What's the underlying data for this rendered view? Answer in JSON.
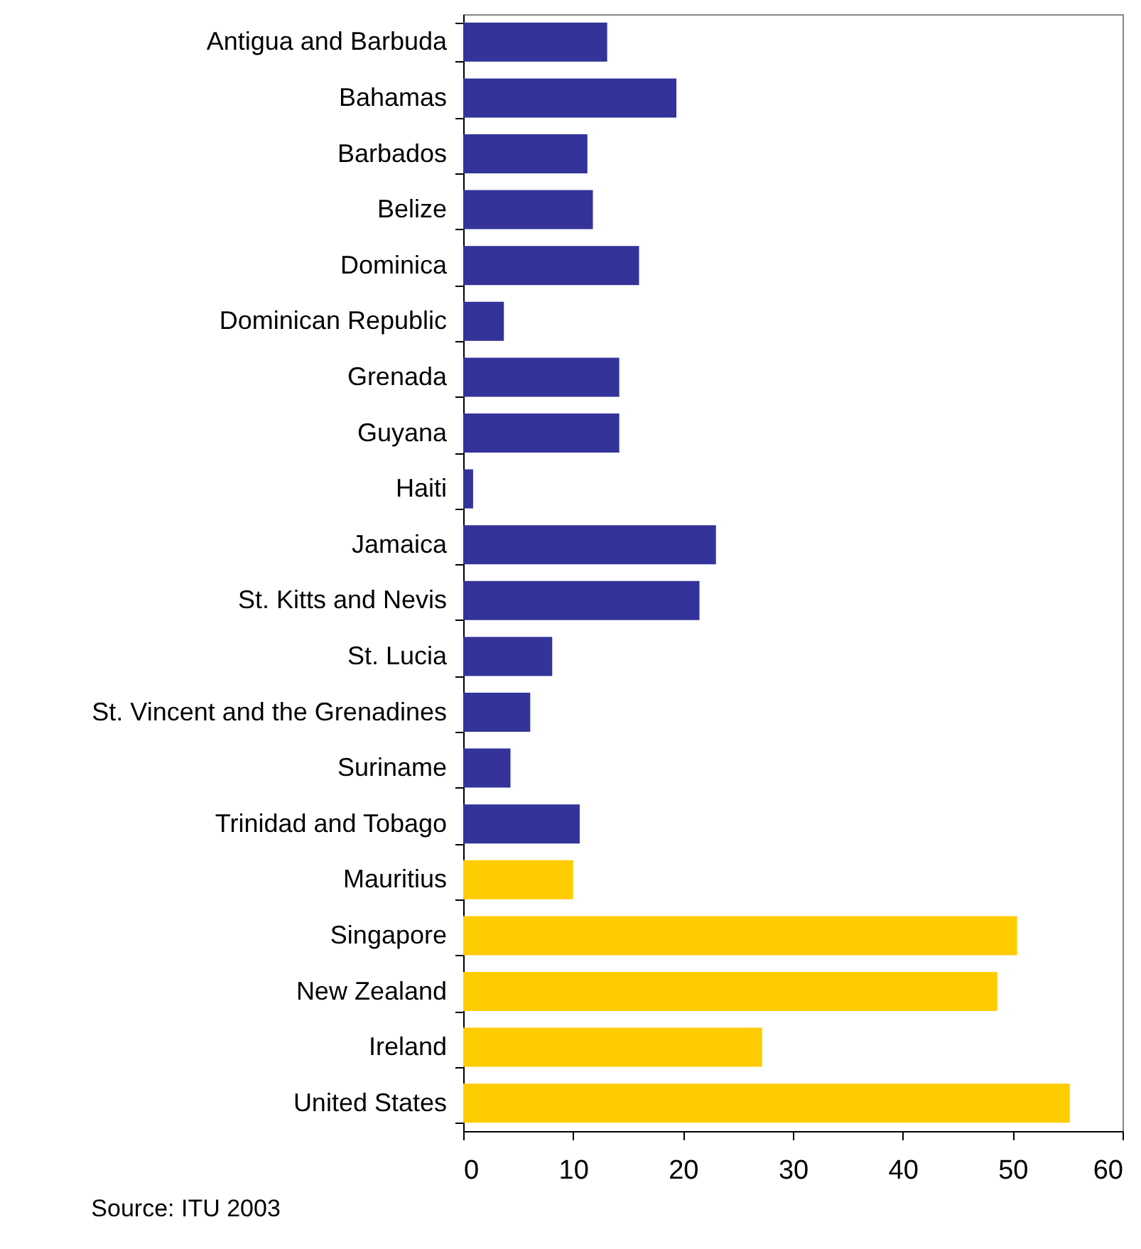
{
  "chart_data": {
    "type": "bar",
    "orientation": "horizontal",
    "categories": [
      "Antigua and Barbuda",
      "Bahamas",
      "Barbados",
      "Belize",
      "Dominica",
      "Dominican Republic",
      "Grenada",
      "Guyana",
      "Haiti",
      "Jamaica",
      "St. Kitts and Nevis",
      "St. Lucia",
      "St. Vincent and the Grenadines",
      "Suriname",
      "Trinidad and Tobago",
      "Mauritius",
      "Singapore",
      "New Zealand",
      "Ireland",
      "United States"
    ],
    "values": [
      13.1,
      19.4,
      11.3,
      11.8,
      16.0,
      3.7,
      14.2,
      14.2,
      0.9,
      23.0,
      21.5,
      8.1,
      6.1,
      4.3,
      10.6,
      10.0,
      50.4,
      48.6,
      27.2,
      55.2
    ],
    "colors": [
      "#333399",
      "#333399",
      "#333399",
      "#333399",
      "#333399",
      "#333399",
      "#333399",
      "#333399",
      "#333399",
      "#333399",
      "#333399",
      "#333399",
      "#333399",
      "#333399",
      "#333399",
      "#ffcc00",
      "#ffcc00",
      "#ffcc00",
      "#ffcc00",
      "#ffcc00"
    ],
    "xlim": [
      0,
      60
    ],
    "xticks": [
      0,
      10,
      20,
      30,
      40,
      50,
      60
    ],
    "annotations": [
      "Source: ITU 2003"
    ]
  }
}
